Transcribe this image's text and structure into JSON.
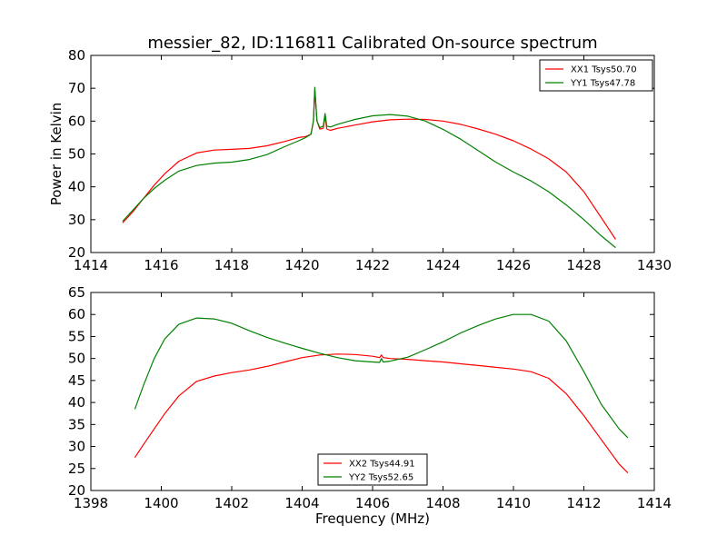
{
  "title": "messier_82, ID:116811 Calibrated On-source spectrum",
  "chart_data": [
    {
      "type": "line",
      "ylabel": "Power in Kelvin",
      "xlabel": "",
      "xlim": [
        1414,
        1430
      ],
      "ylim": [
        20,
        80
      ],
      "xticks": [
        1414,
        1416,
        1418,
        1420,
        1422,
        1424,
        1426,
        1428,
        1430
      ],
      "yticks": [
        20,
        30,
        40,
        50,
        60,
        70,
        80
      ],
      "legend": "top-right",
      "grid": false,
      "series": [
        {
          "name": "XX1 Tsys50.70",
          "color": "#ff0000",
          "x": [
            1414.9,
            1415.2,
            1415.5,
            1415.8,
            1416.1,
            1416.5,
            1417.0,
            1417.5,
            1418.0,
            1418.5,
            1419.0,
            1419.5,
            1419.9,
            1420.1,
            1420.25,
            1420.32,
            1420.36,
            1420.42,
            1420.5,
            1420.6,
            1420.65,
            1420.7,
            1420.8,
            1421.0,
            1421.5,
            1422.0,
            1422.5,
            1423.0,
            1423.5,
            1424.0,
            1424.5,
            1425.0,
            1425.5,
            1426.0,
            1426.5,
            1427.0,
            1427.5,
            1428.0,
            1428.5,
            1428.9
          ],
          "values": [
            29.0,
            32.5,
            36.5,
            40.5,
            44.0,
            47.8,
            50.3,
            51.2,
            51.4,
            51.7,
            52.5,
            53.8,
            55.0,
            55.3,
            56.0,
            60.0,
            69.5,
            60.0,
            57.6,
            57.8,
            61.5,
            57.6,
            57.2,
            57.8,
            58.8,
            59.8,
            60.4,
            60.6,
            60.5,
            60.0,
            59.0,
            57.6,
            56.0,
            54.0,
            51.5,
            48.5,
            44.5,
            38.5,
            30.5,
            24.0
          ]
        },
        {
          "name": "YY1 Tsys47.78",
          "color": "#008000",
          "x": [
            1414.9,
            1415.2,
            1415.5,
            1415.8,
            1416.1,
            1416.5,
            1417.0,
            1417.5,
            1418.0,
            1418.5,
            1419.0,
            1419.5,
            1419.9,
            1420.1,
            1420.25,
            1420.32,
            1420.36,
            1420.42,
            1420.5,
            1420.6,
            1420.65,
            1420.7,
            1420.8,
            1421.0,
            1421.5,
            1422.0,
            1422.5,
            1423.0,
            1423.5,
            1424.0,
            1424.5,
            1425.0,
            1425.5,
            1426.0,
            1426.5,
            1427.0,
            1427.5,
            1428.0,
            1428.5,
            1428.9
          ],
          "values": [
            29.5,
            33.0,
            36.5,
            39.5,
            42.0,
            44.8,
            46.5,
            47.2,
            47.5,
            48.3,
            49.8,
            52.2,
            54.0,
            55.0,
            56.0,
            60.0,
            70.3,
            60.0,
            58.0,
            58.5,
            62.3,
            58.5,
            58.2,
            59.0,
            60.5,
            61.6,
            62.0,
            61.5,
            60.0,
            57.5,
            54.5,
            51.0,
            47.5,
            44.5,
            41.8,
            38.5,
            34.5,
            30.0,
            25.0,
            21.5
          ]
        }
      ]
    },
    {
      "type": "line",
      "xlabel": "Frequency (MHz)",
      "ylabel": "",
      "xlim": [
        1398,
        1414
      ],
      "ylim": [
        20,
        65
      ],
      "xticks": [
        1398,
        1400,
        1402,
        1404,
        1406,
        1408,
        1410,
        1412,
        1414
      ],
      "yticks": [
        20,
        25,
        30,
        35,
        40,
        45,
        50,
        55,
        60,
        65
      ],
      "legend": "bottom-center",
      "grid": false,
      "series": [
        {
          "name": "XX2 Tsys44.91",
          "color": "#ff0000",
          "x": [
            1399.25,
            1399.5,
            1399.8,
            1400.1,
            1400.5,
            1401.0,
            1401.5,
            1402.0,
            1402.5,
            1403.0,
            1403.5,
            1404.0,
            1404.5,
            1405.0,
            1405.5,
            1406.0,
            1406.2,
            1406.25,
            1406.3,
            1406.5,
            1407.0,
            1407.5,
            1408.0,
            1408.5,
            1409.0,
            1409.5,
            1410.0,
            1410.5,
            1411.0,
            1411.5,
            1412.0,
            1412.5,
            1413.0,
            1413.25
          ],
          "values": [
            27.5,
            30.5,
            34.0,
            37.5,
            41.5,
            44.8,
            46.0,
            46.8,
            47.4,
            48.2,
            49.2,
            50.2,
            50.8,
            51.0,
            50.9,
            50.5,
            50.2,
            50.8,
            50.2,
            50.0,
            49.8,
            49.5,
            49.2,
            48.8,
            48.4,
            48.0,
            47.6,
            47.0,
            45.5,
            42.0,
            37.0,
            31.5,
            26.0,
            24.0
          ]
        },
        {
          "name": "YY2 Tsys52.65",
          "color": "#008000",
          "x": [
            1399.25,
            1399.5,
            1399.8,
            1400.1,
            1400.5,
            1401.0,
            1401.5,
            1402.0,
            1402.5,
            1403.0,
            1403.5,
            1404.0,
            1404.5,
            1405.0,
            1405.5,
            1406.0,
            1406.2,
            1406.25,
            1406.3,
            1406.5,
            1407.0,
            1407.5,
            1408.0,
            1408.5,
            1409.0,
            1409.5,
            1410.0,
            1410.5,
            1411.0,
            1411.5,
            1412.0,
            1412.5,
            1413.0,
            1413.25
          ],
          "values": [
            38.5,
            44.0,
            50.0,
            54.5,
            57.8,
            59.2,
            59.0,
            58.0,
            56.3,
            54.8,
            53.5,
            52.3,
            51.2,
            50.2,
            49.5,
            49.2,
            49.1,
            50.0,
            49.2,
            49.4,
            50.3,
            52.0,
            53.8,
            55.8,
            57.5,
            59.0,
            60.0,
            60.0,
            58.5,
            54.0,
            47.0,
            39.5,
            34.0,
            32.0
          ]
        }
      ]
    }
  ]
}
